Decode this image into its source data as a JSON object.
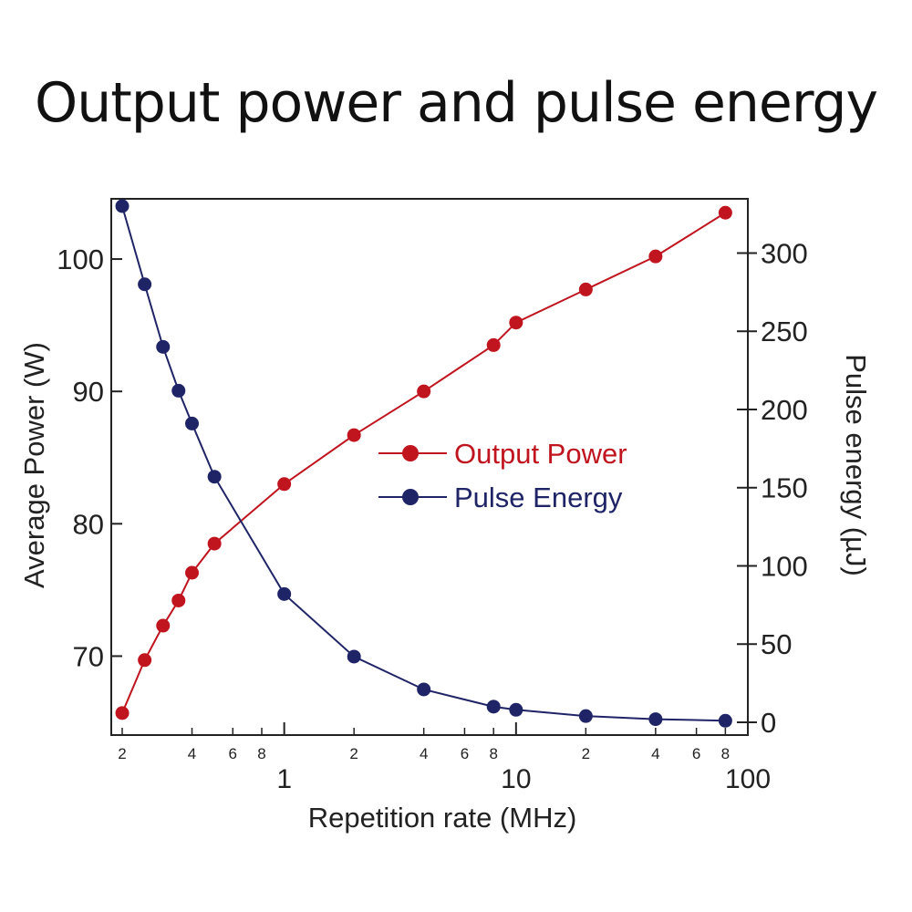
{
  "title": "Output power and pulse energy",
  "chart_data": {
    "type": "line",
    "title": "Output power and pulse energy",
    "xlabel": "Repetition rate (MHz)",
    "ylabel_left": "Average Power (W)",
    "ylabel_right": "Pulse energy (µJ)",
    "x_scale": "log",
    "xlim": [
      0.2,
      100
    ],
    "ylim_left": [
      65,
      104
    ],
    "ylim_right": [
      0,
      330
    ],
    "x_major_ticks": [
      {
        "value": 1,
        "label": "1"
      },
      {
        "value": 10,
        "label": "10"
      },
      {
        "value": 100,
        "label": "100"
      }
    ],
    "x_minor_ticks": [
      {
        "value": 0.2,
        "label": "2"
      },
      {
        "value": 0.4,
        "label": "4"
      },
      {
        "value": 0.6,
        "label": "6"
      },
      {
        "value": 0.8,
        "label": "8"
      },
      {
        "value": 2,
        "label": "2"
      },
      {
        "value": 4,
        "label": "4"
      },
      {
        "value": 6,
        "label": "6"
      },
      {
        "value": 8,
        "label": "8"
      },
      {
        "value": 20,
        "label": "2"
      },
      {
        "value": 40,
        "label": "4"
      },
      {
        "value": 60,
        "label": "6"
      },
      {
        "value": 80,
        "label": "8"
      }
    ],
    "y_left_ticks": [
      70,
      80,
      90,
      100
    ],
    "y_right_ticks": [
      0,
      50,
      100,
      150,
      200,
      250,
      300
    ],
    "legend_position": "center-right",
    "series": [
      {
        "name": "Output Power",
        "axis": "left",
        "color": "#c0141e",
        "x": [
          0.2,
          0.25,
          0.3,
          0.35,
          0.4,
          0.5,
          1,
          2,
          4,
          8,
          10,
          20,
          40,
          80
        ],
        "y": [
          65.7,
          69.7,
          72.3,
          74.2,
          76.3,
          78.5,
          83.0,
          86.7,
          90.0,
          93.5,
          95.2,
          97.7,
          100.2,
          103.5
        ]
      },
      {
        "name": "Pulse Energy",
        "axis": "right",
        "color": "#1f2467",
        "x": [
          0.2,
          0.25,
          0.3,
          0.35,
          0.4,
          0.5,
          1,
          2,
          4,
          8,
          10,
          20,
          40,
          80
        ],
        "y": [
          330,
          280,
          240,
          212,
          191,
          157,
          82,
          42,
          21,
          10,
          8,
          4,
          2,
          1
        ]
      }
    ]
  }
}
